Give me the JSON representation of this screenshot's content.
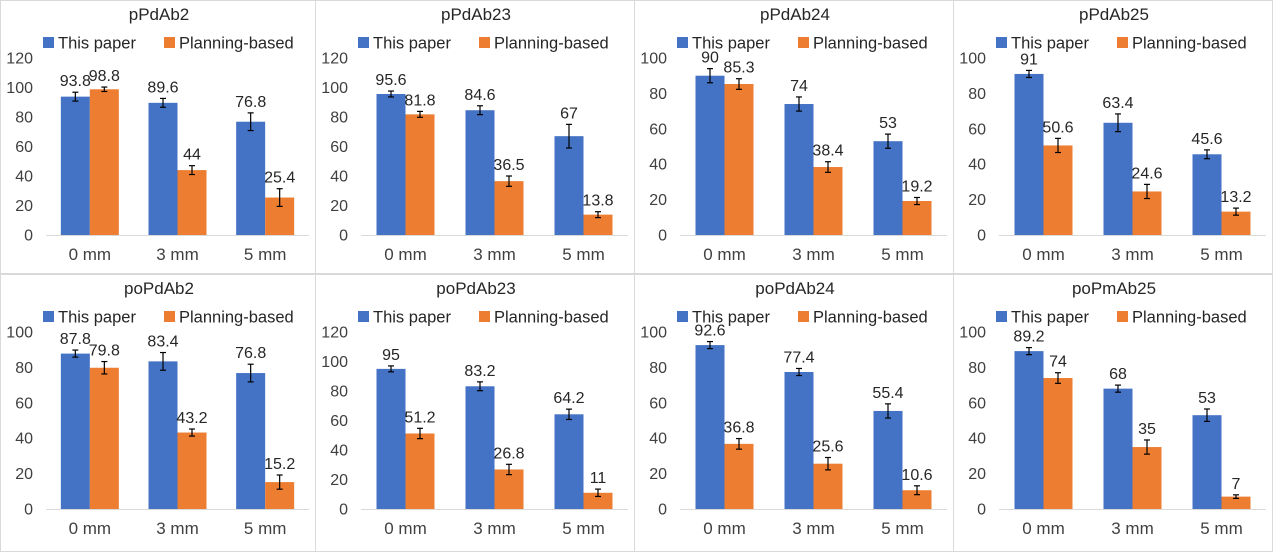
{
  "colors": {
    "this_paper": "#4472C4",
    "planning_based": "#ED7D31",
    "error_bar": "#000000"
  },
  "legend": [
    "This paper",
    "Planning-based"
  ],
  "chart_data": [
    {
      "type": "bar",
      "title": "pPdAb2",
      "categories": [
        "0 mm",
        "3 mm",
        "5 mm"
      ],
      "ylim": [
        0,
        120
      ],
      "yticks": [
        0,
        20,
        40,
        60,
        80,
        100,
        120
      ],
      "legend_position": "top",
      "series": [
        {
          "name": "This paper",
          "values": [
            93.8,
            89.6,
            76.8
          ],
          "errors": [
            3,
            3,
            6
          ]
        },
        {
          "name": "Planning-based",
          "values": [
            98.8,
            44,
            25.4
          ],
          "errors": [
            1.5,
            3,
            6
          ]
        }
      ]
    },
    {
      "type": "bar",
      "title": "pPdAb23",
      "categories": [
        "0 mm",
        "3 mm",
        "5 mm"
      ],
      "ylim": [
        0,
        120
      ],
      "yticks": [
        0,
        20,
        40,
        60,
        80,
        100,
        120
      ],
      "legend_position": "top",
      "series": [
        {
          "name": "This paper",
          "values": [
            95.6,
            84.6,
            67
          ],
          "errors": [
            2,
            3,
            8
          ]
        },
        {
          "name": "Planning-based",
          "values": [
            81.8,
            36.5,
            13.8
          ],
          "errors": [
            2,
            3.5,
            2
          ]
        }
      ]
    },
    {
      "type": "bar",
      "title": "pPdAb24",
      "categories": [
        "0 mm",
        "3 mm",
        "5 mm"
      ],
      "ylim": [
        0,
        100
      ],
      "yticks": [
        0,
        20,
        40,
        60,
        80,
        100
      ],
      "legend_position": "top",
      "series": [
        {
          "name": "This paper",
          "values": [
            90,
            74,
            53
          ],
          "errors": [
            4,
            4,
            4
          ]
        },
        {
          "name": "Planning-based",
          "values": [
            85.3,
            38.4,
            19.2
          ],
          "errors": [
            3,
            3,
            2
          ]
        }
      ]
    },
    {
      "type": "bar",
      "title": "pPdAb25",
      "categories": [
        "0 mm",
        "3 mm",
        "5 mm"
      ],
      "ylim": [
        0,
        100
      ],
      "yticks": [
        0,
        20,
        40,
        60,
        80,
        100
      ],
      "legend_position": "top",
      "series": [
        {
          "name": "This paper",
          "values": [
            91,
            63.4,
            45.6
          ],
          "errors": [
            2,
            5,
            2.5
          ]
        },
        {
          "name": "Planning-based",
          "values": [
            50.6,
            24.6,
            13.2
          ],
          "errors": [
            4,
            4,
            2
          ]
        }
      ]
    },
    {
      "type": "bar",
      "title": "poPdAb2",
      "categories": [
        "0 mm",
        "3 mm",
        "5 mm"
      ],
      "ylim": [
        0,
        100
      ],
      "yticks": [
        0,
        20,
        40,
        60,
        80,
        100
      ],
      "legend_position": "top",
      "series": [
        {
          "name": "This paper",
          "values": [
            87.8,
            83.4,
            76.8
          ],
          "errors": [
            2,
            5,
            5
          ]
        },
        {
          "name": "Planning-based",
          "values": [
            79.8,
            43.2,
            15.2
          ],
          "errors": [
            3.5,
            2,
            4
          ]
        }
      ]
    },
    {
      "type": "bar",
      "title": "poPdAb23",
      "categories": [
        "0 mm",
        "3 mm",
        "5 mm"
      ],
      "ylim": [
        0,
        120
      ],
      "yticks": [
        0,
        20,
        40,
        60,
        80,
        100,
        120
      ],
      "legend_position": "top",
      "series": [
        {
          "name": "This paper",
          "values": [
            95,
            83.2,
            64.2
          ],
          "errors": [
            2,
            3,
            3.5
          ]
        },
        {
          "name": "Planning-based",
          "values": [
            51.2,
            26.8,
            11
          ],
          "errors": [
            3.5,
            3.5,
            2.5
          ]
        }
      ]
    },
    {
      "type": "bar",
      "title": "poPdAb24",
      "categories": [
        "0 mm",
        "3 mm",
        "5 mm"
      ],
      "ylim": [
        0,
        100
      ],
      "yticks": [
        0,
        20,
        40,
        60,
        80,
        100
      ],
      "legend_position": "top",
      "series": [
        {
          "name": "This paper",
          "values": [
            92.6,
            77.4,
            55.4
          ],
          "errors": [
            2,
            2,
            4
          ]
        },
        {
          "name": "Planning-based",
          "values": [
            36.8,
            25.6,
            10.6
          ],
          "errors": [
            3,
            3.5,
            2.5
          ]
        }
      ]
    },
    {
      "type": "bar",
      "title": "poPmAb25",
      "categories": [
        "0 mm",
        "3 mm",
        "5 mm"
      ],
      "ylim": [
        0,
        100
      ],
      "yticks": [
        0,
        20,
        40,
        60,
        80,
        100
      ],
      "legend_position": "top",
      "series": [
        {
          "name": "This paper",
          "values": [
            89.2,
            68,
            53
          ],
          "errors": [
            2,
            2,
            3.5
          ]
        },
        {
          "name": "Planning-based",
          "values": [
            74,
            35,
            7
          ],
          "errors": [
            3,
            4,
            1
          ]
        }
      ]
    }
  ]
}
